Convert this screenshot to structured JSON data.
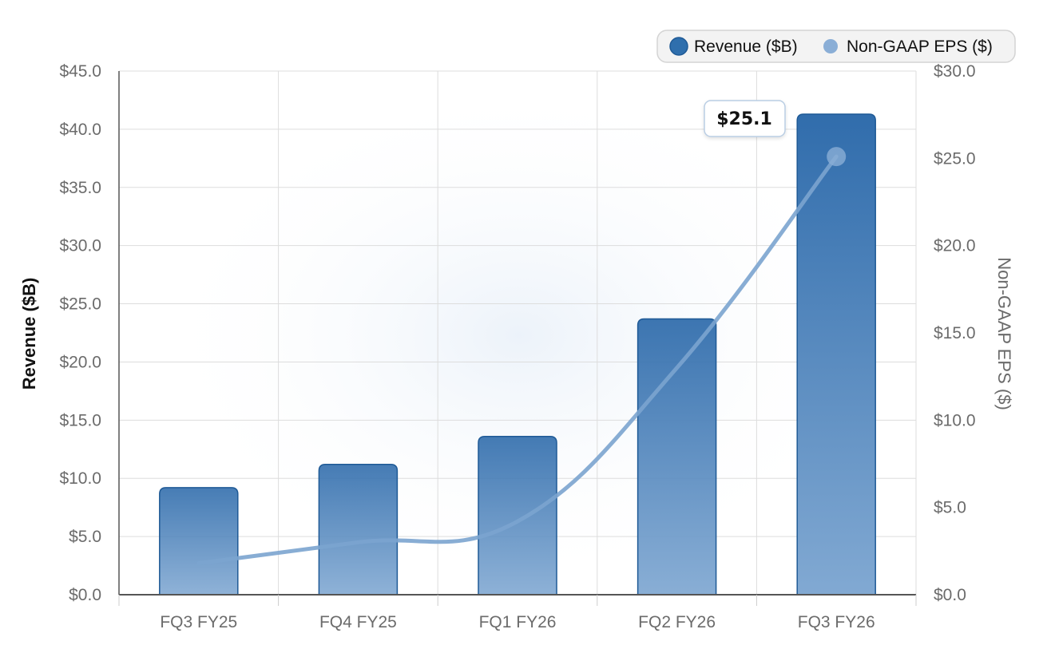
{
  "chart_data": {
    "type": "bar",
    "categories": [
      "FQ3 FY25",
      "FQ4 FY25",
      "FQ1 FY26",
      "FQ2 FY26",
      "FQ3 FY26"
    ],
    "series": [
      {
        "name": "Revenue ($B)",
        "type": "bar",
        "axis": "left",
        "color": "#2f6fad",
        "values": [
          9.2,
          11.2,
          13.6,
          23.7,
          41.3
        ]
      },
      {
        "name": "Non-GAAP EPS ($)",
        "type": "line",
        "axis": "right",
        "color": "#7ba4cf",
        "values": [
          1.8,
          3.0,
          4.2,
          13.0,
          25.1
        ]
      }
    ],
    "ylabel": "Revenue ($B)",
    "y2label": "Non-GAAP EPS ($)",
    "ylim": [
      0,
      45
    ],
    "y2lim": [
      0,
      30
    ],
    "yticks": [
      "$0.0",
      "$5.0",
      "$10.0",
      "$15.0",
      "$20.0",
      "$25.0",
      "$30.0",
      "$35.0",
      "$40.0",
      "$45.0"
    ],
    "y2ticks": [
      "$0.0",
      "$5.0",
      "$10.0",
      "$15.0",
      "$20.0",
      "$25.0",
      "$30.0"
    ],
    "grid": true,
    "legend": "top-right",
    "annotation": {
      "text": "$25.1",
      "category": "FQ3 FY26",
      "series": "Non-GAAP EPS ($)"
    }
  }
}
